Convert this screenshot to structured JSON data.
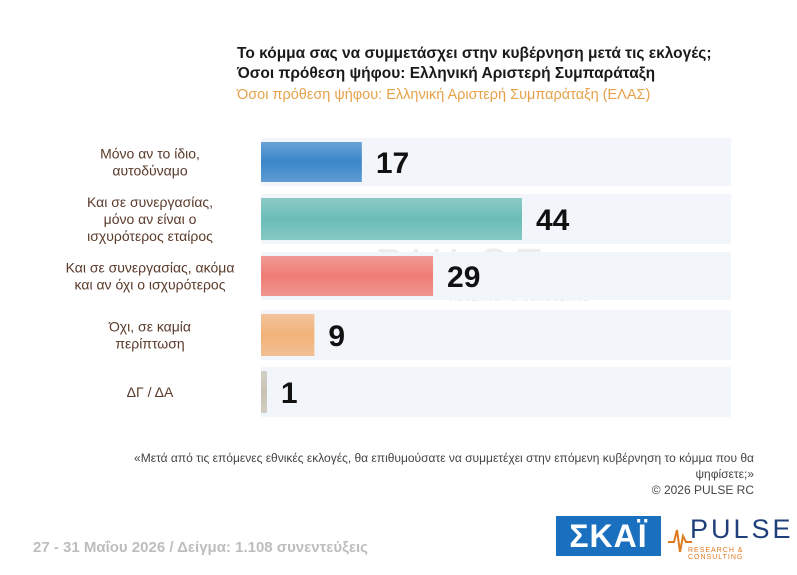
{
  "title_line1": "Το κόμμα σας να συμμετάσχει στην κυβέρνηση μετά τις εκλογές;",
  "title_line2": "Όσοι πρόθεση ψήφου: Ελληνική Αριστερή Συμπαράταξη",
  "subtitle": "Όσοι πρόθεση ψήφου: Ελληνική Αριστερή Συμπαράταξη (ΕΛΑΣ)",
  "watermark": "PULSE",
  "watermark_sub": "RESEARCH & CONSULTING",
  "question_note": "«Μετά από τις επόμενες εθνικές εκλογές, θα επιθυμούσατε να συμμετέχει στην επόμενη κυβέρνηση το κόμμα που θα ψηφίσετε;»",
  "copyright": "© 2026 PULSE RC",
  "footer": "27 - 31 Μαΐου 2026 / Δείγμα: 1.108 συνεντεύξεις",
  "logos": {
    "skai": "ΣΚΑΪ",
    "pulse": "PULSE",
    "pulse_sub": "RESEARCH & CONSULTING"
  },
  "colors": {
    "bar1": "#3b86c9",
    "bar2": "#6bbdb6",
    "bar3": "#ef7d74",
    "bar4": "#f2b27a",
    "bar5": "#c9c2b4",
    "track": "#f2f5fa"
  },
  "chart_data": {
    "type": "bar",
    "orientation": "horizontal",
    "categories": [
      [
        "Μόνο αν το ίδιο,",
        "αυτοδύναμο"
      ],
      [
        "Και σε συνεργασίας,",
        "μόνο αν είναι ο",
        "ισχυρότερος εταίρος"
      ],
      [
        "Και σε συνεργασίας, ακόμα",
        "και αν όχι ο ισχυρότερος"
      ],
      [
        "Όχι, σε καμία",
        "περίπτωση"
      ],
      [
        "ΔΓ / ΔΑ"
      ]
    ],
    "values": [
      17,
      44,
      29,
      9,
      1
    ],
    "xlim": [
      0,
      100
    ],
    "grid": false
  }
}
